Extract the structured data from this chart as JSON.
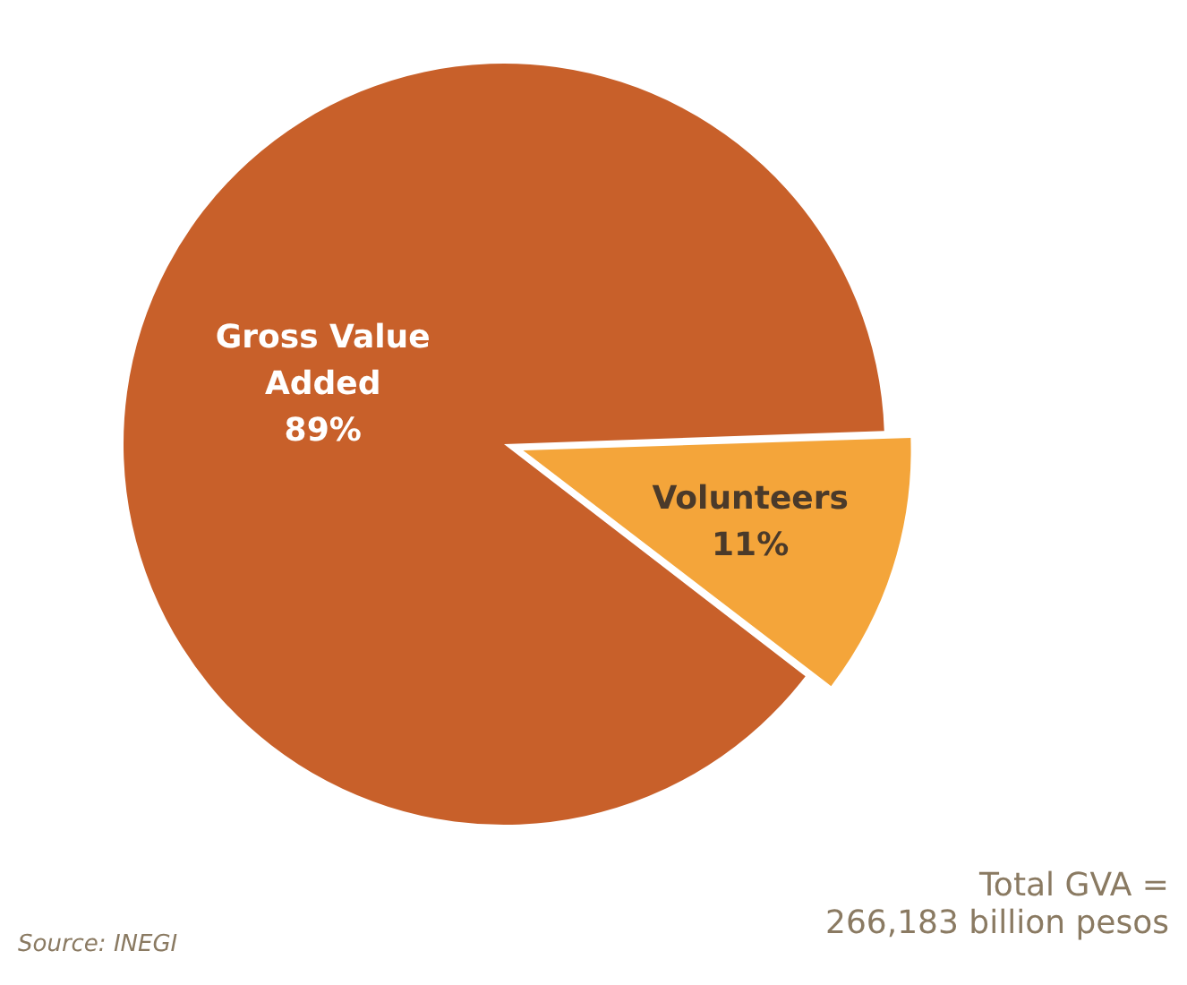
{
  "chart_data": {
    "type": "pie",
    "categories": [
      "Volunteers",
      "Gross Value Added"
    ],
    "values": [
      11,
      89
    ],
    "colors": [
      "#f4a53a",
      "#c8602a"
    ],
    "value_labels": [
      "11%",
      "89%"
    ],
    "annotations": [
      "Total GVA =\n266,183 billion pesos",
      "Source: INEGI"
    ]
  }
}
